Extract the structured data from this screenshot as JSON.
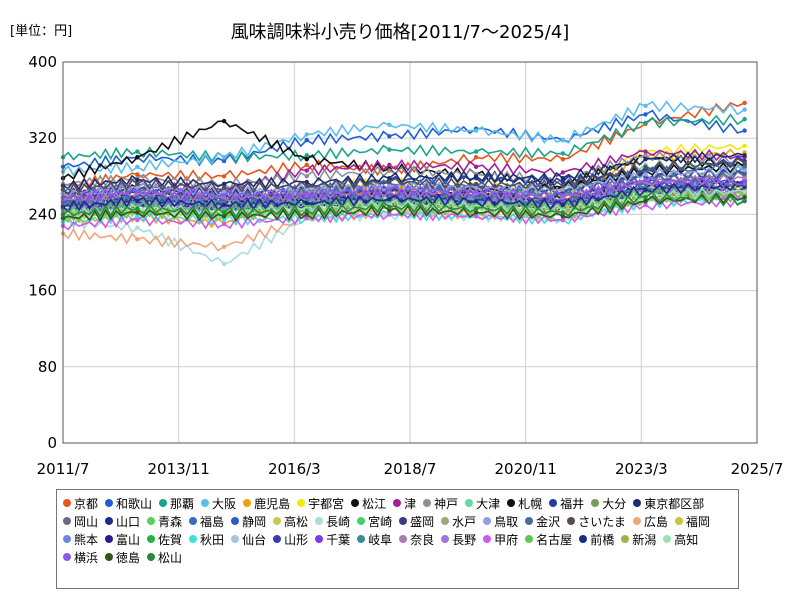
{
  "chart_data": {
    "type": "line",
    "title": "風味調味料小売り価格[2011/7～2025/4]",
    "unit_label": "[単位：円]",
    "ylim": [
      0,
      400
    ],
    "yticks": [
      0,
      80,
      160,
      240,
      320,
      400
    ],
    "xlim": [
      "2011-07",
      "2025-07"
    ],
    "xticks": [
      "2011/7",
      "2013/11",
      "2016/3",
      "2018/7",
      "2020/11",
      "2023/3",
      "2025/7"
    ],
    "grid": true,
    "legend_position": "bottom",
    "series": [
      {
        "name": "京都",
        "color": "#e8541e",
        "values": [
          270,
          282,
          280,
          292,
          286,
          300,
          298,
          335,
          357
        ]
      },
      {
        "name": "和歌山",
        "color": "#1f5fd6",
        "values": [
          290,
          300,
          296,
          318,
          322,
          330,
          318,
          345,
          328
        ]
      },
      {
        "name": "那覇",
        "color": "#17a589",
        "values": [
          300,
          306,
          300,
          302,
          308,
          306,
          304,
          336,
          340
        ]
      },
      {
        "name": "大阪",
        "color": "#5bbcee",
        "values": [
          285,
          290,
          300,
          324,
          334,
          328,
          318,
          354,
          350
        ]
      },
      {
        "name": "鹿児島",
        "color": "#f0a30a",
        "values": [
          232,
          238,
          230,
          262,
          268,
          262,
          258,
          300,
          305
        ]
      },
      {
        "name": "宇都宮",
        "color": "#f5e60c",
        "values": [
          258,
          262,
          256,
          268,
          274,
          270,
          266,
          306,
          312
        ]
      },
      {
        "name": "松江",
        "color": "#111111",
        "values": [
          278,
          300,
          338,
          298,
          288,
          282,
          270,
          300,
          292
        ]
      },
      {
        "name": "津",
        "color": "#a020a0",
        "values": [
          262,
          270,
          266,
          286,
          292,
          290,
          284,
          306,
          300
        ]
      },
      {
        "name": "神戸",
        "color": "#8a8f9a",
        "values": [
          272,
          278,
          272,
          280,
          286,
          282,
          276,
          302,
          296
        ]
      },
      {
        "name": "大津",
        "color": "#66d9a3",
        "values": [
          252,
          258,
          254,
          264,
          270,
          266,
          262,
          292,
          288
        ]
      },
      {
        "name": "札幌",
        "color": "#101010",
        "values": [
          262,
          268,
          262,
          258,
          264,
          266,
          268,
          286,
          290
        ]
      },
      {
        "name": "福井",
        "color": "#1d3ea8",
        "values": [
          266,
          272,
          268,
          270,
          276,
          278,
          274,
          288,
          296
        ]
      },
      {
        "name": "大分",
        "color": "#7a9a5a",
        "values": [
          258,
          262,
          256,
          262,
          266,
          262,
          258,
          278,
          282
        ]
      },
      {
        "name": "東京都区部",
        "color": "#1b2e6b",
        "values": [
          270,
          276,
          272,
          274,
          278,
          280,
          278,
          298,
          302
        ]
      },
      {
        "name": "岡山",
        "color": "#6b6b80",
        "values": [
          252,
          256,
          250,
          258,
          262,
          258,
          254,
          274,
          270
        ]
      },
      {
        "name": "山口",
        "color": "#1e2a8c",
        "values": [
          258,
          262,
          256,
          262,
          264,
          260,
          256,
          276,
          274
        ]
      },
      {
        "name": "青森",
        "color": "#58d05a",
        "values": [
          240,
          246,
          242,
          248,
          252,
          250,
          246,
          264,
          262
        ]
      },
      {
        "name": "福島",
        "color": "#3a6dbd",
        "values": [
          262,
          268,
          262,
          266,
          272,
          270,
          266,
          284,
          290
        ]
      },
      {
        "name": "静岡",
        "color": "#2b5cc7",
        "values": [
          250,
          256,
          252,
          256,
          262,
          258,
          256,
          272,
          276
        ]
      },
      {
        "name": "高松",
        "color": "#c9c94a",
        "values": [
          238,
          244,
          240,
          250,
          254,
          252,
          248,
          266,
          270
        ]
      },
      {
        "name": "長崎",
        "color": "#a8dde0",
        "values": [
          232,
          226,
          188,
          236,
          240,
          238,
          236,
          254,
          258
        ]
      },
      {
        "name": "宮崎",
        "color": "#3fd36b",
        "values": [
          244,
          250,
          246,
          250,
          254,
          252,
          248,
          264,
          260
        ]
      },
      {
        "name": "盛岡",
        "color": "#3a3a8a",
        "values": [
          262,
          266,
          262,
          266,
          270,
          268,
          264,
          280,
          284
        ]
      },
      {
        "name": "水戸",
        "color": "#9aab7a",
        "values": [
          250,
          256,
          252,
          254,
          258,
          256,
          252,
          268,
          266
        ]
      },
      {
        "name": "鳥取",
        "color": "#8ea0e6",
        "values": [
          262,
          268,
          264,
          266,
          270,
          268,
          266,
          282,
          286
        ]
      },
      {
        "name": "金沢",
        "color": "#4a6a9a",
        "values": [
          256,
          262,
          258,
          262,
          266,
          264,
          260,
          276,
          280
        ]
      },
      {
        "name": "さいたま",
        "color": "#5a4a5a",
        "values": [
          266,
          272,
          268,
          270,
          274,
          272,
          270,
          290,
          294
        ]
      },
      {
        "name": "広島",
        "color": "#f2a57a",
        "values": [
          220,
          214,
          206,
          236,
          242,
          240,
          238,
          256,
          262
        ]
      },
      {
        "name": "福岡",
        "color": "#c2c83a",
        "values": [
          236,
          242,
          238,
          246,
          250,
          248,
          246,
          264,
          268
        ]
      },
      {
        "name": "熊本",
        "color": "#6a88d8",
        "values": [
          244,
          250,
          246,
          252,
          256,
          254,
          250,
          268,
          264
        ]
      },
      {
        "name": "富山",
        "color": "#2a1a9a",
        "values": [
          248,
          254,
          250,
          254,
          258,
          256,
          252,
          268,
          272
        ]
      },
      {
        "name": "佐賀",
        "color": "#2ab04a",
        "values": [
          236,
          242,
          238,
          244,
          248,
          246,
          242,
          258,
          262
        ]
      },
      {
        "name": "秋田",
        "color": "#3ee0d8",
        "values": [
          232,
          238,
          234,
          236,
          240,
          238,
          234,
          252,
          256
        ]
      },
      {
        "name": "仙台",
        "color": "#a8c4e0",
        "values": [
          240,
          246,
          242,
          244,
          248,
          246,
          242,
          258,
          262
        ]
      },
      {
        "name": "山形",
        "color": "#3a3ab0",
        "values": [
          246,
          252,
          248,
          250,
          254,
          252,
          248,
          264,
          268
        ]
      },
      {
        "name": "千葉",
        "color": "#7a3af0",
        "values": [
          254,
          260,
          256,
          258,
          262,
          260,
          256,
          272,
          276
        ]
      },
      {
        "name": "岐阜",
        "color": "#3a8a9a",
        "values": [
          250,
          256,
          252,
          254,
          258,
          256,
          252,
          268,
          272
        ]
      },
      {
        "name": "奈良",
        "color": "#b078b0",
        "values": [
          256,
          262,
          258,
          260,
          264,
          262,
          258,
          274,
          278
        ]
      },
      {
        "name": "長野",
        "color": "#9a78e0",
        "values": [
          246,
          252,
          248,
          252,
          256,
          254,
          250,
          266,
          262
        ]
      },
      {
        "name": "甲府",
        "color": "#d05af0",
        "values": [
          228,
          234,
          230,
          236,
          240,
          238,
          234,
          250,
          254
        ]
      },
      {
        "name": "名古屋",
        "color": "#5ac850",
        "values": [
          242,
          248,
          244,
          248,
          252,
          250,
          246,
          262,
          258
        ]
      },
      {
        "name": "前橋",
        "color": "#1a2f7a",
        "values": [
          248,
          254,
          250,
          252,
          256,
          254,
          250,
          266,
          270
        ]
      },
      {
        "name": "新潟",
        "color": "#9ab84a",
        "values": [
          236,
          242,
          238,
          242,
          246,
          244,
          240,
          256,
          260
        ]
      },
      {
        "name": "高知",
        "color": "#a0e0b0",
        "values": [
          240,
          246,
          242,
          246,
          250,
          248,
          244,
          260,
          264
        ]
      },
      {
        "name": "横浜",
        "color": "#8a5af0",
        "values": [
          258,
          264,
          260,
          262,
          266,
          264,
          260,
          276,
          272
        ]
      },
      {
        "name": "徳島",
        "color": "#2a5a1a",
        "values": [
          236,
          242,
          238,
          240,
          244,
          242,
          238,
          254,
          258
        ]
      },
      {
        "name": "松山",
        "color": "#2a8a3a",
        "values": [
          240,
          246,
          242,
          244,
          248,
          246,
          242,
          258,
          254
        ]
      }
    ],
    "x": [
      "2011-07",
      "2013-01",
      "2014-10",
      "2016-06",
      "2018-02",
      "2019-11",
      "2021-08",
      "2023-04",
      "2025-04"
    ]
  }
}
